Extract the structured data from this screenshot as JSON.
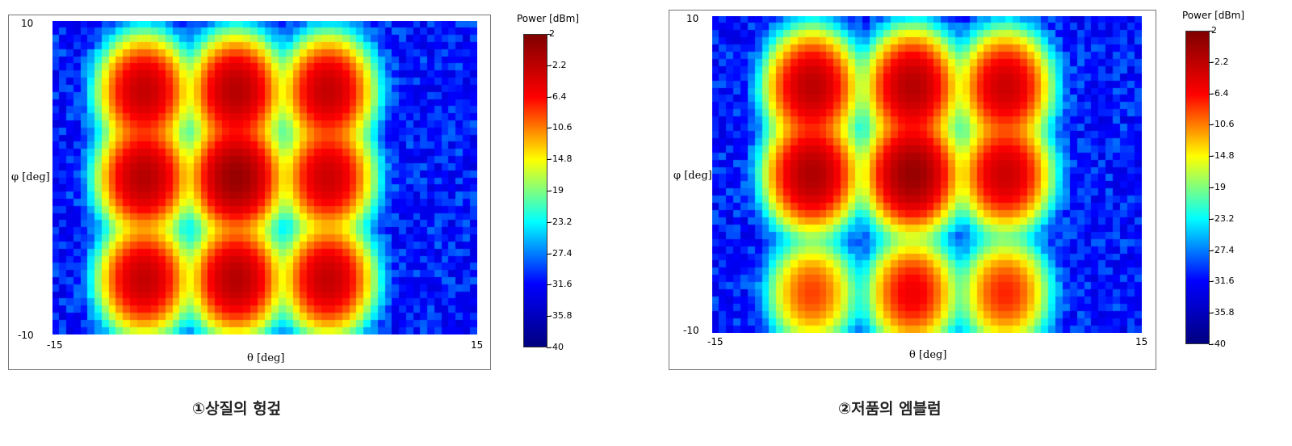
{
  "chart_data": [
    {
      "type": "heatmap",
      "caption": "①상질의 헝겊",
      "xlabel": "θ [deg]",
      "ylabel": "φ [deg]",
      "xlim": [
        -15,
        15
      ],
      "ylim": [
        -10,
        10
      ],
      "x_ticks": [
        "-15",
        "15"
      ],
      "y_ticks": [
        "10",
        "-10"
      ],
      "colorbar": {
        "title": "Power [dBm]",
        "range": [
          -40,
          2
        ],
        "ticks": [
          "2",
          "-2.2",
          "-6.4",
          "-10.6",
          "-14.8",
          "-19",
          "-23.2",
          "-27.4",
          "-31.6",
          "-35.8",
          "-40"
        ],
        "colors": [
          "#800000",
          "#ff0000",
          "#ffff00",
          "#00ffff",
          "#0000ff",
          "#000080"
        ]
      },
      "background_dbm": -31,
      "grid": "off",
      "peaks": [
        {
          "theta": -8.5,
          "phi": 5.5,
          "dbm": -2.5
        },
        {
          "theta": -2.0,
          "phi": 5.5,
          "dbm": -1.5
        },
        {
          "theta": 4.5,
          "phi": 5.5,
          "dbm": -2.5
        },
        {
          "theta": -8.5,
          "phi": 0,
          "dbm": -1.5
        },
        {
          "theta": -2.0,
          "phi": 0,
          "dbm": 0.5
        },
        {
          "theta": 4.5,
          "phi": 0,
          "dbm": -3.0
        },
        {
          "theta": -8.5,
          "phi": -6.5,
          "dbm": -2.5
        },
        {
          "theta": -2.0,
          "phi": -6.5,
          "dbm": -1.5
        },
        {
          "theta": 4.5,
          "phi": -6.5,
          "dbm": -2.5
        }
      ]
    },
    {
      "type": "heatmap",
      "caption": "②저품의 엠블럼",
      "xlabel": "θ [deg]",
      "ylabel": "φ [deg]",
      "xlim": [
        -15,
        15
      ],
      "ylim": [
        -10,
        10
      ],
      "x_ticks": [
        "-15",
        "15"
      ],
      "y_ticks": [
        "10",
        "-10"
      ],
      "colorbar": {
        "title": "Power [dBm]",
        "range": [
          -40,
          2
        ],
        "ticks": [
          "2",
          "-2.2",
          "-6.4",
          "-10.6",
          "-14.8",
          "-19",
          "-23.2",
          "-27.4",
          "-31.6",
          "-35.8",
          "-40"
        ],
        "colors": [
          "#800000",
          "#ff0000",
          "#ffff00",
          "#00ffff",
          "#0000ff",
          "#000080"
        ]
      },
      "background_dbm": -31,
      "grid": "off",
      "peaks": [
        {
          "theta": -8.0,
          "phi": 5.5,
          "dbm": -2.0
        },
        {
          "theta": -1.0,
          "phi": 5.5,
          "dbm": -1.5
        },
        {
          "theta": 5.5,
          "phi": 5.5,
          "dbm": -3.0
        },
        {
          "theta": -8.0,
          "phi": 0,
          "dbm": -1.0
        },
        {
          "theta": -1.0,
          "phi": 0,
          "dbm": 0.5
        },
        {
          "theta": 5.5,
          "phi": 0,
          "dbm": -3.0
        },
        {
          "theta": -8.0,
          "phi": -7.5,
          "dbm": -8.5
        },
        {
          "theta": -1.0,
          "phi": -7.5,
          "dbm": -5.5
        },
        {
          "theta": 5.5,
          "phi": -7.5,
          "dbm": -7.5
        }
      ]
    }
  ]
}
